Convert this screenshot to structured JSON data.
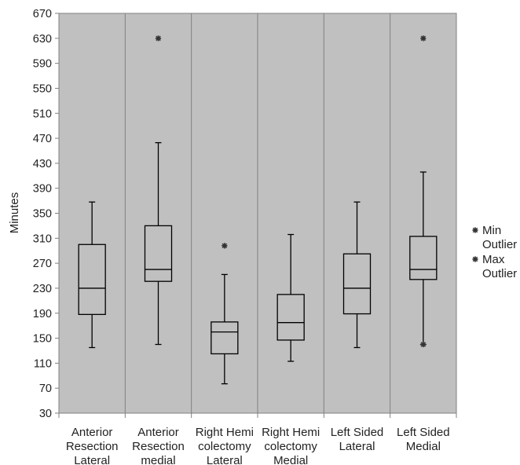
{
  "chart_data": {
    "type": "box",
    "title": "",
    "xlabel": "",
    "ylabel": "Minutes",
    "ylim": [
      30,
      670
    ],
    "yticks": [
      30,
      70,
      110,
      150,
      190,
      230,
      270,
      310,
      350,
      390,
      430,
      470,
      510,
      550,
      590,
      630,
      670
    ],
    "grid": "vertical separators between categories",
    "background": "#c0c0c0",
    "categories": [
      [
        "Anterior",
        "Resection",
        "Lateral"
      ],
      [
        "Anterior",
        "Resection",
        "medial"
      ],
      [
        "Right Hemi",
        "colectomy",
        "Lateral"
      ],
      [
        "Right Hemi",
        "colectomy",
        "Medial"
      ],
      [
        "Left Sided",
        "Lateral"
      ],
      [
        "Left Sided",
        "Medial"
      ]
    ],
    "boxes": [
      {
        "whisker_low": 135,
        "q1": 188,
        "median": 230,
        "q3": 300,
        "whisker_high": 368,
        "min_outliers": [],
        "max_outliers": []
      },
      {
        "whisker_low": 140,
        "q1": 241,
        "median": 260,
        "q3": 330,
        "whisker_high": 463,
        "min_outliers": [],
        "max_outliers": [
          630
        ]
      },
      {
        "whisker_low": 77,
        "q1": 125,
        "median": 160,
        "q3": 176,
        "whisker_high": 252,
        "min_outliers": [],
        "max_outliers": [
          298
        ]
      },
      {
        "whisker_low": 113,
        "q1": 147,
        "median": 175,
        "q3": 220,
        "whisker_high": 316,
        "min_outliers": [],
        "max_outliers": []
      },
      {
        "whisker_low": 135,
        "q1": 189,
        "median": 230,
        "q3": 285,
        "whisker_high": 368,
        "min_outliers": [],
        "max_outliers": []
      },
      {
        "whisker_low": 140,
        "q1": 244,
        "median": 260,
        "q3": 313,
        "whisker_high": 416,
        "min_outliers": [
          140
        ],
        "max_outliers": [
          630
        ]
      }
    ],
    "legend": {
      "placement": "right",
      "entries": [
        {
          "label": [
            "Min",
            "Outlier"
          ],
          "marker": "asterisk"
        },
        {
          "label": [
            "Max",
            "Outlier"
          ],
          "marker": "asterisk"
        }
      ]
    }
  }
}
